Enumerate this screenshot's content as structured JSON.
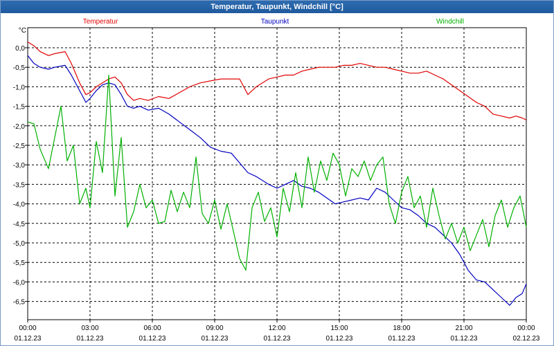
{
  "window": {
    "title": "Temperatur, Taupunkt, Windchill [°C]"
  },
  "chart_data": {
    "type": "line",
    "title": "Temperatur, Taupunkt, Windchill [°C]",
    "ylabel": "°C",
    "xlabel": "",
    "ylim": [
      -7.0,
      0.5
    ],
    "xlim": [
      0,
      24
    ],
    "grid": true,
    "y_ticks": [
      0.0,
      -0.5,
      -1.0,
      -1.5,
      -2.0,
      -2.5,
      -3.0,
      -3.5,
      -4.0,
      -4.5,
      -5.0,
      -5.5,
      -6.0,
      -6.5
    ],
    "y_tick_labels": [
      "0,0",
      "-0,5",
      "-1,0",
      "-1,5",
      "-2,0",
      "-2,5",
      "-3,0",
      "-3,5",
      "-4,0",
      "-4,5",
      "-5,0",
      "-5,5",
      "-6,0",
      "-6,5"
    ],
    "x_ticks": [
      0,
      3,
      6,
      9,
      12,
      15,
      18,
      21,
      24
    ],
    "x_tick_time_labels": [
      "00:00",
      "03:00",
      "06:00",
      "09:00",
      "12:00",
      "15:00",
      "18:00",
      "21:00",
      "00:00"
    ],
    "x_tick_date_labels": [
      "01.12.23",
      "01.12.23",
      "01.12.23",
      "01.12.23",
      "01.12.23",
      "01.12.23",
      "01.12.23",
      "01.12.23",
      "02.12.23"
    ],
    "legend_position": "top",
    "series": [
      {
        "name": "Temperatur",
        "color": "#e00000",
        "x": [
          0,
          0.3,
          0.6,
          1.0,
          1.3,
          1.8,
          2.1,
          2.5,
          2.8,
          3.0,
          3.3,
          3.6,
          3.9,
          4.2,
          4.5,
          4.8,
          5.1,
          5.4,
          5.8,
          6.3,
          6.8,
          7.3,
          7.8,
          8.3,
          8.8,
          9.3,
          9.8,
          10.2,
          10.6,
          11.0,
          11.3,
          11.6,
          12.0,
          12.4,
          12.8,
          13.2,
          13.6,
          14.0,
          14.4,
          14.8,
          15.2,
          15.6,
          16.0,
          16.4,
          16.8,
          17.2,
          17.6,
          18.0,
          18.4,
          18.8,
          19.2,
          19.6,
          20.0,
          20.4,
          20.8,
          21.2,
          21.6,
          22.0,
          22.4,
          22.8,
          23.2,
          23.5,
          23.8,
          24.0
        ],
        "values": [
          0.15,
          0.05,
          -0.1,
          -0.2,
          -0.15,
          -0.1,
          -0.4,
          -0.9,
          -1.2,
          -1.15,
          -1.0,
          -0.9,
          -0.8,
          -0.75,
          -0.9,
          -1.2,
          -1.35,
          -1.3,
          -1.35,
          -1.25,
          -1.3,
          -1.15,
          -1.0,
          -0.9,
          -0.85,
          -0.8,
          -0.8,
          -0.8,
          -1.2,
          -1.0,
          -0.9,
          -0.8,
          -0.75,
          -0.7,
          -0.7,
          -0.6,
          -0.55,
          -0.5,
          -0.5,
          -0.5,
          -0.45,
          -0.45,
          -0.4,
          -0.45,
          -0.5,
          -0.5,
          -0.55,
          -0.6,
          -0.65,
          -0.65,
          -0.6,
          -0.7,
          -0.8,
          -0.95,
          -1.1,
          -1.25,
          -1.4,
          -1.5,
          -1.7,
          -1.75,
          -1.8,
          -1.75,
          -1.8,
          -1.85
        ]
      },
      {
        "name": "Taupunkt",
        "color": "#0000c0",
        "x": [
          0,
          0.3,
          0.6,
          1.0,
          1.3,
          1.8,
          2.1,
          2.5,
          2.8,
          3.0,
          3.3,
          3.6,
          3.9,
          4.2,
          4.5,
          4.8,
          5.1,
          5.4,
          5.8,
          6.3,
          6.8,
          7.3,
          7.8,
          8.3,
          8.8,
          9.3,
          9.8,
          10.2,
          10.6,
          11.0,
          11.3,
          11.6,
          12.0,
          12.4,
          12.8,
          13.2,
          13.6,
          14.0,
          14.4,
          14.8,
          15.2,
          15.6,
          16.0,
          16.4,
          16.8,
          17.2,
          17.6,
          18.0,
          18.4,
          18.8,
          19.2,
          19.6,
          20.0,
          20.4,
          20.8,
          21.2,
          21.6,
          22.0,
          22.4,
          22.8,
          23.2,
          23.5,
          23.8,
          24.0
        ],
        "values": [
          -0.2,
          -0.4,
          -0.5,
          -0.55,
          -0.5,
          -0.45,
          -0.7,
          -1.1,
          -1.4,
          -1.3,
          -1.1,
          -0.95,
          -0.9,
          -0.95,
          -1.2,
          -1.5,
          -1.55,
          -1.5,
          -1.6,
          -1.55,
          -1.7,
          -1.9,
          -2.1,
          -2.3,
          -2.55,
          -2.65,
          -2.7,
          -2.95,
          -3.2,
          -3.3,
          -3.4,
          -3.5,
          -3.6,
          -3.5,
          -3.4,
          -3.55,
          -3.6,
          -3.7,
          -3.85,
          -4.0,
          -3.95,
          -3.9,
          -3.85,
          -3.9,
          -3.6,
          -3.7,
          -3.9,
          -4.1,
          -4.15,
          -4.3,
          -4.5,
          -4.6,
          -4.8,
          -5.0,
          -5.3,
          -5.7,
          -5.95,
          -6.0,
          -6.2,
          -6.4,
          -6.6,
          -6.4,
          -6.3,
          -6.05
        ]
      },
      {
        "name": "Windchill",
        "color": "#00b000",
        "x": [
          0,
          0.3,
          0.6,
          1.0,
          1.3,
          1.6,
          1.9,
          2.2,
          2.5,
          2.8,
          3.0,
          3.3,
          3.6,
          3.9,
          4.2,
          4.5,
          4.8,
          5.1,
          5.4,
          5.7,
          6.0,
          6.3,
          6.6,
          6.9,
          7.2,
          7.5,
          7.8,
          8.1,
          8.4,
          8.7,
          9.0,
          9.3,
          9.6,
          9.9,
          10.2,
          10.5,
          10.8,
          11.1,
          11.4,
          11.7,
          12.0,
          12.3,
          12.6,
          12.9,
          13.2,
          13.5,
          13.8,
          14.1,
          14.4,
          14.7,
          15.0,
          15.3,
          15.6,
          15.9,
          16.2,
          16.5,
          16.8,
          17.1,
          17.4,
          17.7,
          18.0,
          18.3,
          18.6,
          18.9,
          19.2,
          19.5,
          19.8,
          20.1,
          20.4,
          20.7,
          21.0,
          21.3,
          21.6,
          21.9,
          22.2,
          22.5,
          22.8,
          23.1,
          23.4,
          23.7,
          24.0
        ],
        "values": [
          -1.9,
          -1.95,
          -2.6,
          -3.1,
          -2.3,
          -1.5,
          -2.9,
          -2.5,
          -4.0,
          -3.6,
          -4.1,
          -2.4,
          -3.2,
          -0.7,
          -3.8,
          -2.3,
          -4.6,
          -4.2,
          -3.5,
          -4.1,
          -3.9,
          -4.5,
          -4.45,
          -3.65,
          -4.2,
          -3.7,
          -4.1,
          -2.8,
          -4.25,
          -4.5,
          -3.9,
          -4.65,
          -4.0,
          -4.7,
          -5.4,
          -5.7,
          -4.1,
          -3.7,
          -4.45,
          -4.1,
          -4.85,
          -3.6,
          -4.2,
          -3.2,
          -4.1,
          -2.8,
          -3.7,
          -2.9,
          -3.4,
          -2.7,
          -3.0,
          -3.8,
          -3.1,
          -3.3,
          -2.9,
          -3.4,
          -3.0,
          -2.8,
          -4.0,
          -4.5,
          -3.7,
          -3.3,
          -4.1,
          -3.8,
          -4.6,
          -3.6,
          -4.3,
          -4.9,
          -4.5,
          -5.0,
          -4.6,
          -5.2,
          -4.8,
          -4.4,
          -5.1,
          -4.3,
          -3.9,
          -4.6,
          -4.1,
          -3.8,
          -4.6
        ]
      }
    ]
  }
}
